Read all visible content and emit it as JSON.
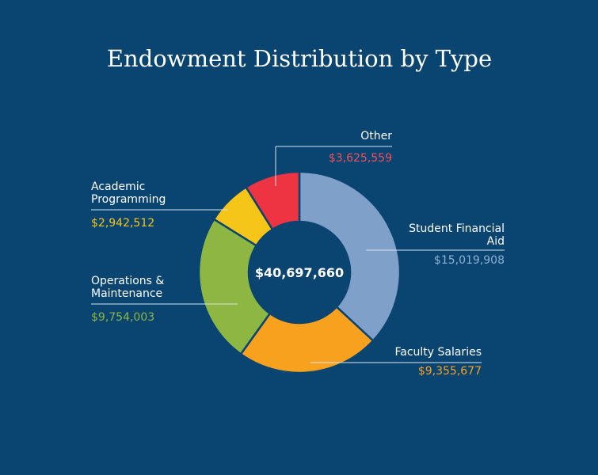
{
  "chart_data": {
    "type": "pie",
    "title": "Endowment Distribution by Type",
    "center_label": "$40,697,660",
    "categories": [
      "Student Financial Aid",
      "Faculty Salaries",
      "Operations & Maintenance",
      "Academic Programming",
      "Other"
    ],
    "values": [
      15019908,
      9355677,
      9754003,
      2942512,
      3625559
    ],
    "value_labels": [
      "$15,019,908",
      "$9,355,677",
      "$9,754,003",
      "$2,942,512",
      "$3,625,559"
    ],
    "colors": [
      "#7fa1c9",
      "#f7a11f",
      "#8db642",
      "#f5c518",
      "#ee3342"
    ],
    "label_colors": [
      "#8fb0d6",
      "#f7a11f",
      "#8db642",
      "#f5c518",
      "#f2505e"
    ]
  }
}
